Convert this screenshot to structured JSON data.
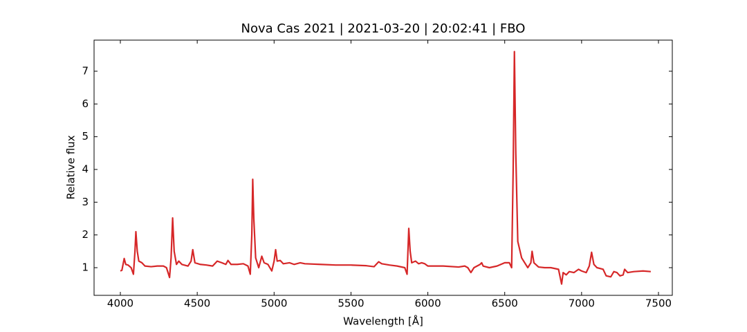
{
  "chart_data": {
    "type": "line",
    "title": "Nova Cas 2021 | 2021-03-20 | 20:02:41 | FBO",
    "x_label": "Wavelength [Å]",
    "y_label": "Relative flux",
    "xlim": [
      3829,
      7590
    ],
    "ylim": [
      0.155,
      7.95
    ],
    "xticks": [
      4000,
      4500,
      5000,
      5500,
      6000,
      6500,
      7000,
      7500
    ],
    "yticks": [
      1,
      2,
      3,
      4,
      5,
      6,
      7
    ],
    "ticks_direction": "in",
    "grid": false,
    "series": [
      {
        "color": "#d62728",
        "x": [
          4000,
          4010,
          4025,
          4035,
          4050,
          4070,
          4085,
          4095,
          4101,
          4110,
          4120,
          4140,
          4160,
          4200,
          4240,
          4280,
          4300,
          4320,
          4330,
          4340,
          4350,
          4365,
          4380,
          4400,
          4440,
          4460,
          4471,
          4485,
          4520,
          4560,
          4600,
          4630,
          4660,
          4686,
          4700,
          4720,
          4760,
          4800,
          4830,
          4845,
          4855,
          4861,
          4868,
          4880,
          4900,
          4920,
          4935,
          4960,
          4985,
          5000,
          5010,
          5020,
          5040,
          5060,
          5100,
          5130,
          5170,
          5200,
          5300,
          5400,
          5500,
          5600,
          5650,
          5680,
          5700,
          5750,
          5800,
          5850,
          5865,
          5876,
          5885,
          5895,
          5920,
          5940,
          5960,
          5980,
          6000,
          6100,
          6200,
          6240,
          6260,
          6280,
          6300,
          6340,
          6350,
          6360,
          6400,
          6450,
          6500,
          6530,
          6545,
          6555,
          6563,
          6572,
          6585,
          6610,
          6650,
          6670,
          6678,
          6690,
          6720,
          6760,
          6800,
          6850,
          6870,
          6880,
          6900,
          6920,
          6950,
          6980,
          7000,
          7030,
          7050,
          7065,
          7080,
          7100,
          7140,
          7160,
          7190,
          7210,
          7230,
          7250,
          7270,
          7280,
          7300,
          7340,
          7400,
          7450
        ],
        "values": [
          0.9,
          0.92,
          1.28,
          1.1,
          1.08,
          1.0,
          0.8,
          1.5,
          2.1,
          1.5,
          1.2,
          1.15,
          1.05,
          1.03,
          1.05,
          1.05,
          1.0,
          0.7,
          1.3,
          2.52,
          1.5,
          1.1,
          1.2,
          1.1,
          1.05,
          1.2,
          1.55,
          1.15,
          1.1,
          1.08,
          1.05,
          1.2,
          1.15,
          1.1,
          1.22,
          1.1,
          1.1,
          1.12,
          1.05,
          0.8,
          2.0,
          3.7,
          2.5,
          1.3,
          1.0,
          1.35,
          1.15,
          1.1,
          0.9,
          1.2,
          1.55,
          1.2,
          1.22,
          1.12,
          1.15,
          1.1,
          1.15,
          1.12,
          1.1,
          1.08,
          1.08,
          1.06,
          1.03,
          1.18,
          1.12,
          1.08,
          1.05,
          1.0,
          0.8,
          2.2,
          1.5,
          1.15,
          1.2,
          1.12,
          1.15,
          1.12,
          1.05,
          1.05,
          1.02,
          1.05,
          1.0,
          0.85,
          1.0,
          1.1,
          1.15,
          1.05,
          1.0,
          1.05,
          1.15,
          1.15,
          1.0,
          4.0,
          7.6,
          4.5,
          1.8,
          1.3,
          1.0,
          1.15,
          1.5,
          1.15,
          1.02,
          1.0,
          1.0,
          0.95,
          0.5,
          0.85,
          0.78,
          0.88,
          0.85,
          0.95,
          0.9,
          0.85,
          1.05,
          1.47,
          1.1,
          1.0,
          0.95,
          0.75,
          0.72,
          0.88,
          0.85,
          0.75,
          0.78,
          0.95,
          0.85,
          0.88,
          0.9,
          0.88
        ]
      }
    ]
  }
}
